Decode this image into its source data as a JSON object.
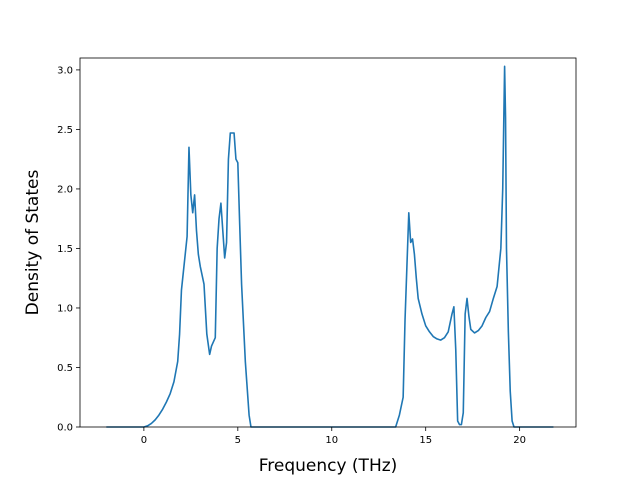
{
  "chart_data": {
    "type": "line",
    "title": "",
    "xlabel": "Frequency (THz)",
    "ylabel": "Density of States",
    "xlim": [
      -3.4,
      23.0
    ],
    "ylim": [
      0.0,
      3.1
    ],
    "xticks": [
      0,
      5,
      10,
      15,
      20
    ],
    "yticks": [
      0.0,
      0.5,
      1.0,
      1.5,
      2.0,
      2.5,
      3.0
    ],
    "xtick_labels": [
      "0",
      "5",
      "10",
      "15",
      "20"
    ],
    "ytick_labels": [
      "0.0",
      "0.5",
      "1.0",
      "1.5",
      "2.0",
      "2.5",
      "3.0"
    ],
    "grid": false,
    "legend": "none",
    "colors": {
      "line": "#1f77b4",
      "axes": "#000000"
    },
    "series": [
      {
        "x": [
          -2.0,
          -1.0,
          0.0,
          0.2,
          0.4,
          0.6,
          0.8,
          1.0,
          1.2,
          1.4,
          1.6,
          1.8,
          1.9,
          2.0,
          2.1,
          2.2,
          2.3,
          2.4,
          2.45,
          2.5,
          2.6,
          2.7,
          2.8,
          2.9,
          3.0,
          3.2,
          3.35,
          3.5,
          3.6,
          3.8,
          3.9,
          4.0,
          4.1,
          4.2,
          4.3,
          4.4,
          4.5,
          4.6,
          4.7,
          4.8,
          4.9,
          5.0,
          5.1,
          5.2,
          5.4,
          5.6,
          5.7,
          5.8,
          6.0,
          8.0,
          10.0,
          12.0,
          13.0,
          13.4,
          13.6,
          13.8,
          13.9,
          14.0,
          14.1,
          14.2,
          14.3,
          14.4,
          14.5,
          14.6,
          14.8,
          15.0,
          15.2,
          15.4,
          15.6,
          15.8,
          16.0,
          16.2,
          16.4,
          16.5,
          16.6,
          16.7,
          16.8,
          16.9,
          17.0,
          17.1,
          17.2,
          17.3,
          17.4,
          17.6,
          17.8,
          18.0,
          18.2,
          18.4,
          18.6,
          18.8,
          19.0,
          19.1,
          19.2,
          19.25,
          19.3,
          19.4,
          19.5,
          19.6,
          19.7,
          19.8,
          20.0,
          21.0,
          21.8
        ],
        "y": [
          0.0,
          0.0,
          0.0,
          0.01,
          0.03,
          0.06,
          0.1,
          0.15,
          0.21,
          0.28,
          0.38,
          0.55,
          0.78,
          1.15,
          1.3,
          1.45,
          1.6,
          2.35,
          2.15,
          1.95,
          1.8,
          1.95,
          1.65,
          1.45,
          1.35,
          1.2,
          0.78,
          0.61,
          0.68,
          0.75,
          1.5,
          1.75,
          1.88,
          1.65,
          1.42,
          1.55,
          2.25,
          2.47,
          2.47,
          2.47,
          2.25,
          2.22,
          1.7,
          1.2,
          0.55,
          0.1,
          0.0,
          0.0,
          0.0,
          0.0,
          0.0,
          0.0,
          0.0,
          0.0,
          0.1,
          0.25,
          0.9,
          1.35,
          1.8,
          1.55,
          1.58,
          1.45,
          1.25,
          1.08,
          0.95,
          0.85,
          0.8,
          0.76,
          0.74,
          0.73,
          0.75,
          0.8,
          0.95,
          1.01,
          0.65,
          0.05,
          0.02,
          0.02,
          0.12,
          0.95,
          1.08,
          0.93,
          0.82,
          0.79,
          0.81,
          0.85,
          0.92,
          0.97,
          1.08,
          1.18,
          1.5,
          2.0,
          3.03,
          2.6,
          1.5,
          0.8,
          0.3,
          0.05,
          0.0,
          0.0,
          0.0,
          0.0,
          0.0
        ]
      }
    ]
  }
}
